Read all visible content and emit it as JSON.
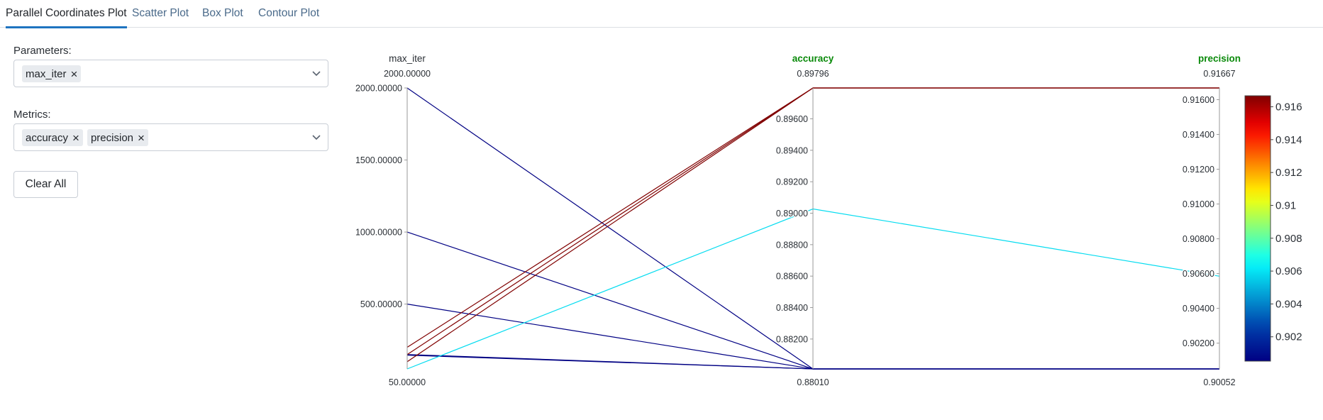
{
  "tabs": [
    {
      "label": "Parallel Coordinates Plot",
      "active": true
    },
    {
      "label": "Scatter Plot",
      "active": false
    },
    {
      "label": "Box Plot",
      "active": false
    },
    {
      "label": "Contour Plot",
      "active": false
    }
  ],
  "controls": {
    "parameters_label": "Parameters:",
    "parameters_selected": [
      "max_iter"
    ],
    "metrics_label": "Metrics:",
    "metrics_selected": [
      "accuracy",
      "precision"
    ],
    "clear_all_label": "Clear All",
    "remove_icon": "close-icon",
    "dropdown_icon": "chevron-down-icon"
  },
  "chart_data": {
    "type": "parallel_coordinates",
    "dimensions": [
      {
        "label": "max_iter",
        "label_color": "#2a2f35",
        "range": [
          50,
          2000
        ],
        "range_labels": {
          "max": "2000.00000",
          "min": "50.00000"
        },
        "tick_values": [
          500,
          1000,
          1500,
          2000
        ],
        "tick_labels": [
          "500.00000",
          "1000.00000",
          "1500.00000",
          "2000.00000"
        ]
      },
      {
        "label": "accuracy",
        "label_color": "#0a8a0a",
        "range": [
          0.8801,
          0.89796
        ],
        "range_labels": {
          "max": "0.89796",
          "min": "0.88010"
        },
        "tick_values": [
          0.882,
          0.884,
          0.886,
          0.888,
          0.89,
          0.892,
          0.894,
          0.896
        ],
        "tick_labels": [
          "0.88200",
          "0.88400",
          "0.88600",
          "0.88800",
          "0.89000",
          "0.89200",
          "0.89400",
          "0.89600"
        ]
      },
      {
        "label": "precision",
        "label_color": "#0a8a0a",
        "range": [
          0.90052,
          0.91667
        ],
        "range_labels": {
          "max": "0.91667",
          "min": "0.90052"
        },
        "tick_values": [
          0.902,
          0.904,
          0.906,
          0.908,
          0.91,
          0.912,
          0.914,
          0.916
        ],
        "tick_labels": [
          "0.90200",
          "0.90400",
          "0.90600",
          "0.90800",
          "0.91000",
          "0.91200",
          "0.91400",
          "0.91600"
        ]
      }
    ],
    "lines": [
      {
        "max_iter": 2000,
        "accuracy": 0.8801,
        "precision": 0.90052
      },
      {
        "max_iter": 1000,
        "accuracy": 0.8801,
        "precision": 0.90052
      },
      {
        "max_iter": 500,
        "accuracy": 0.8801,
        "precision": 0.90052
      },
      {
        "max_iter": 150,
        "accuracy": 0.8801,
        "precision": 0.90052
      },
      {
        "max_iter": 145,
        "accuracy": 0.8801,
        "precision": 0.90052
      },
      {
        "max_iter": 50,
        "accuracy": 0.89027,
        "precision": 0.90585
      },
      {
        "max_iter": 200,
        "accuracy": 0.89796,
        "precision": 0.91667
      },
      {
        "max_iter": 150,
        "accuracy": 0.89796,
        "precision": 0.91667
      },
      {
        "max_iter": 100,
        "accuracy": 0.89796,
        "precision": 0.91667
      }
    ],
    "color_by": "precision",
    "colorscale": "jet",
    "colorbar": {
      "range": [
        0.90052,
        0.91667
      ],
      "tick_values": [
        0.902,
        0.904,
        0.906,
        0.908,
        0.91,
        0.912,
        0.914,
        0.916
      ],
      "tick_labels": [
        "0.902",
        "0.904",
        "0.906",
        "0.908",
        "0.91",
        "0.912",
        "0.914",
        "0.916"
      ]
    }
  }
}
